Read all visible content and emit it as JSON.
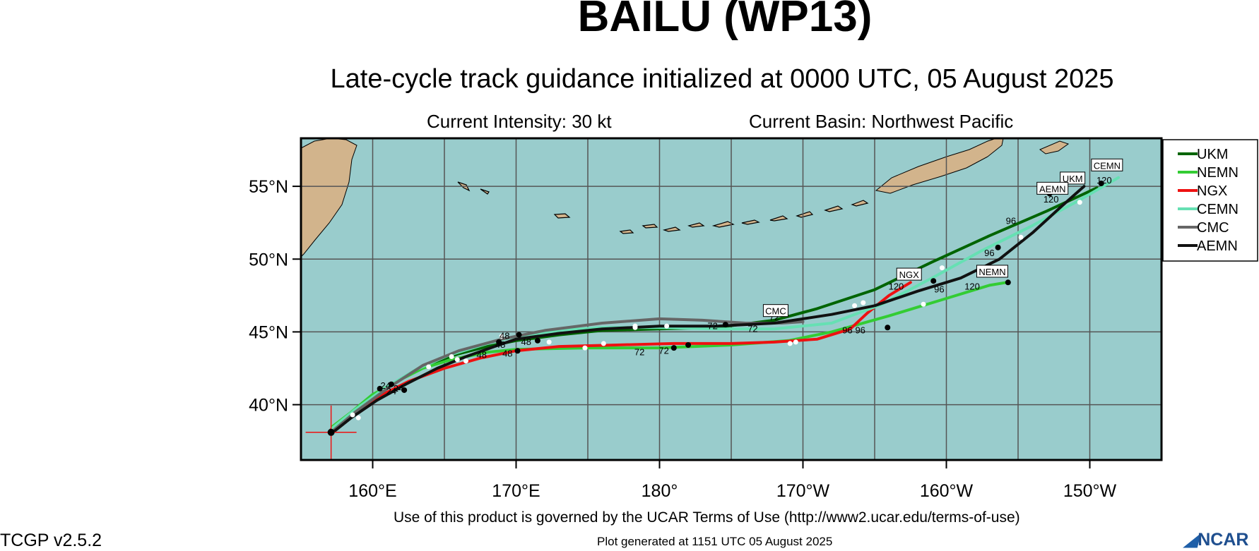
{
  "header": {
    "title": "BAILU (WP13)",
    "subtitle": "Late-cycle track guidance initialized at 0000 UTC, 05 August 2025",
    "intensity": "Current Intensity: 30 kt",
    "basin": "Current Basin: Northwest Pacific"
  },
  "footer": {
    "terms": "Use of this product is governed by the UCAR Terms of Use (http://www2.ucar.edu/terms-of-use)",
    "version": "TCGP v2.5.2",
    "generated": "Plot generated at 1151 UTC   05 August 2025",
    "logo": "NCAR"
  },
  "colors": {
    "ocean": "#99cccc",
    "land": "#d2b48c",
    "grid": "#555555"
  },
  "map": {
    "lon_range_east": [
      155,
      215
    ],
    "lat_range": [
      36.2,
      58.3
    ],
    "lat_ticks": [
      {
        "lat": 55,
        "label": "55°N"
      },
      {
        "lat": 50,
        "label": "50°N"
      },
      {
        "lat": 45,
        "label": "45°N"
      },
      {
        "lat": 40,
        "label": "40°N"
      }
    ],
    "lon_ticks": [
      {
        "lon": 160,
        "label": "160°E"
      },
      {
        "lon": 170,
        "label": "170°E"
      },
      {
        "lon": 180,
        "label": "180°"
      },
      {
        "lon": 190,
        "label": "170°W"
      },
      {
        "lon": 200,
        "label": "160°W"
      },
      {
        "lon": 210,
        "label": "150°W"
      }
    ],
    "initial_position": {
      "lon": 157.1,
      "lat": 38.1
    },
    "tracks": [
      {
        "name": "UKM",
        "color": "#006400",
        "points": [
          [
            157.1,
            38.2
          ],
          [
            158.6,
            39.3
          ],
          [
            160.5,
            40.8
          ],
          [
            162,
            41.8
          ],
          [
            164,
            42.8
          ],
          [
            166,
            43.5
          ],
          [
            168,
            44
          ],
          [
            170,
            44.4
          ],
          [
            173,
            44.8
          ],
          [
            176,
            45.1
          ],
          [
            180,
            45.2
          ],
          [
            184,
            45.3
          ],
          [
            188,
            45.8
          ],
          [
            191,
            46.6
          ],
          [
            195,
            47.9
          ],
          [
            199,
            49.8
          ],
          [
            203,
            51.6
          ],
          [
            207,
            53.3
          ],
          [
            210.5,
            54.9
          ]
        ],
        "hour_labels": [],
        "end_label": {
          "text": "UKM",
          "lon": 208.8,
          "lat": 55.3
        }
      },
      {
        "name": "NEMN",
        "color": "#33cc33",
        "points": [
          [
            157.2,
            38.5
          ],
          [
            158.4,
            39.4
          ],
          [
            160,
            40.7
          ],
          [
            161.5,
            41.5
          ],
          [
            163.5,
            42.5
          ],
          [
            165.5,
            43.1
          ],
          [
            168,
            43.6
          ],
          [
            170,
            43.8
          ],
          [
            175,
            43.9
          ],
          [
            180,
            43.9
          ],
          [
            185,
            44.1
          ],
          [
            189,
            44.4
          ],
          [
            192,
            45.0
          ],
          [
            196,
            46.1
          ],
          [
            200,
            47.3
          ],
          [
            203,
            48.2
          ],
          [
            204.2,
            48.4
          ]
        ],
        "hour_labels": [],
        "end_label": {
          "text": "NEMN",
          "lon": 203.2,
          "lat": 48.9
        }
      },
      {
        "name": "NGX",
        "color": "#ee1111",
        "points": [
          [
            157.1,
            38.3
          ],
          [
            158.7,
            39.5
          ],
          [
            160.5,
            40.6
          ],
          [
            162.5,
            41.6
          ],
          [
            165,
            42.5
          ],
          [
            167.5,
            43.2
          ],
          [
            170,
            43.7
          ],
          [
            173,
            44.0
          ],
          [
            177,
            44.1
          ],
          [
            181,
            44.2
          ],
          [
            185,
            44.2
          ],
          [
            188,
            44.3
          ],
          [
            191,
            44.5
          ],
          [
            193.3,
            45.2
          ],
          [
            194.5,
            46.3
          ],
          [
            196,
            47.5
          ],
          [
            197.5,
            48.4
          ]
        ],
        "hour_labels": [],
        "end_label": {
          "text": "NGX",
          "lon": 197.4,
          "lat": 48.7
        }
      },
      {
        "name": "CEMN",
        "color": "#66e0b3",
        "points": [
          [
            157.2,
            38.4
          ],
          [
            158.7,
            39.6
          ],
          [
            160.8,
            41.1
          ],
          [
            163,
            42.4
          ],
          [
            165.3,
            43.4
          ],
          [
            168,
            44.2
          ],
          [
            170,
            44.7
          ],
          [
            173,
            45.1
          ],
          [
            176,
            45.3
          ],
          [
            180,
            45.3
          ],
          [
            184,
            45.2
          ],
          [
            188,
            45.2
          ],
          [
            192,
            45.6
          ],
          [
            195.5,
            46.9
          ],
          [
            199,
            48.7
          ],
          [
            202.5,
            50.6
          ],
          [
            206,
            52.3
          ],
          [
            209,
            53.9
          ],
          [
            212,
            55.6
          ]
        ],
        "hour_labels": [],
        "end_label": {
          "text": "CEMN",
          "lon": 211.2,
          "lat": 56.2
        }
      },
      {
        "name": "CMC",
        "color": "#666666",
        "points": [
          [
            157.1,
            38.1
          ],
          [
            158.8,
            39.5
          ],
          [
            161,
            41.1
          ],
          [
            163.5,
            42.7
          ],
          [
            166,
            43.7
          ],
          [
            169,
            44.5
          ],
          [
            172,
            45.1
          ],
          [
            176,
            45.6
          ],
          [
            180,
            45.9
          ],
          [
            183,
            45.8
          ],
          [
            186,
            45.6
          ],
          [
            188.5,
            45.6
          ],
          [
            190,
            45.7
          ]
        ],
        "hour_labels": [],
        "end_label": {
          "text": "CMC",
          "lon": 188.1,
          "lat": 46.2
        }
      },
      {
        "name": "AEMN",
        "color": "#111111",
        "points": [
          [
            157.1,
            38.0
          ],
          [
            158.5,
            39.1
          ],
          [
            160.3,
            40.3
          ],
          [
            162.3,
            41.4
          ],
          [
            164.5,
            42.5
          ],
          [
            166.5,
            43.3
          ],
          [
            168.5,
            44.0
          ],
          [
            170,
            44.5
          ],
          [
            173,
            44.9
          ],
          [
            176,
            45.2
          ],
          [
            180,
            45.4
          ],
          [
            184,
            45.4
          ],
          [
            188,
            45.6
          ],
          [
            192,
            46.2
          ],
          [
            195,
            46.8
          ],
          [
            198,
            47.8
          ],
          [
            201,
            48.7
          ],
          [
            203.7,
            50.0
          ],
          [
            206,
            51.8
          ],
          [
            208,
            53.6
          ],
          [
            209.6,
            55.0
          ]
        ],
        "hour_labels": [],
        "end_label": {
          "text": "AEMN",
          "lon": 207.4,
          "lat": 54.6
        }
      }
    ],
    "forecast_hours": [
      {
        "text": "24",
        "lon": 160.9,
        "lat": 41.1
      },
      {
        "text": "24",
        "lon": 161.3,
        "lat": 40.7
      },
      {
        "text": "24",
        "lon": 161.8,
        "lat": 40.9
      },
      {
        "text": "48",
        "lon": 168.9,
        "lat": 43.9
      },
      {
        "text": "48",
        "lon": 169.2,
        "lat": 44.5
      },
      {
        "text": "48",
        "lon": 170.7,
        "lat": 44.1
      },
      {
        "text": "48",
        "lon": 167.6,
        "lat": 43.2
      },
      {
        "text": "48",
        "lon": 169.4,
        "lat": 43.3
      },
      {
        "text": "72",
        "lon": 178.6,
        "lat": 43.4
      },
      {
        "text": "72",
        "lon": 180.3,
        "lat": 43.5
      },
      {
        "text": "72",
        "lon": 183.7,
        "lat": 45.2
      },
      {
        "text": "72",
        "lon": 186.5,
        "lat": 45.0
      },
      {
        "text": "72",
        "lon": 188.0,
        "lat": 45.8
      },
      {
        "text": "96",
        "lon": 194.0,
        "lat": 44.9
      },
      {
        "text": "96",
        "lon": 193.1,
        "lat": 44.9
      },
      {
        "text": "96",
        "lon": 199.5,
        "lat": 47.7
      },
      {
        "text": "96",
        "lon": 203.0,
        "lat": 50.2
      },
      {
        "text": "96",
        "lon": 204.5,
        "lat": 52.4
      },
      {
        "text": "120",
        "lon": 196.5,
        "lat": 47.9
      },
      {
        "text": "120",
        "lon": 201.8,
        "lat": 47.9
      },
      {
        "text": "120",
        "lon": 207.3,
        "lat": 53.9
      },
      {
        "text": "120",
        "lon": 211.0,
        "lat": 55.2
      }
    ],
    "white_markers": [
      [
        158.6,
        39.3
      ],
      [
        159.0,
        39.1
      ],
      [
        163.9,
        42.6
      ],
      [
        165.5,
        43.3
      ],
      [
        165.9,
        43.1
      ],
      [
        166.5,
        43.0
      ],
      [
        169.0,
        44.7
      ],
      [
        172.3,
        44.3
      ],
      [
        174.8,
        43.9
      ],
      [
        176.1,
        44.2
      ],
      [
        178.3,
        45.4
      ],
      [
        178.3,
        45.3
      ],
      [
        180.5,
        45.4
      ],
      [
        189.1,
        44.2
      ],
      [
        189.5,
        44.3
      ],
      [
        193.6,
        46.8
      ],
      [
        194.2,
        47.0
      ],
      [
        198.4,
        46.9
      ],
      [
        199.7,
        49.4
      ],
      [
        205.2,
        51.5
      ],
      [
        209.3,
        53.9
      ]
    ],
    "black_markers": [
      [
        160.5,
        41.1
      ],
      [
        161.3,
        41.4
      ],
      [
        162.2,
        41.0
      ],
      [
        168.8,
        44.3
      ],
      [
        170.2,
        44.8
      ],
      [
        171.5,
        44.4
      ],
      [
        170.1,
        43.7
      ],
      [
        181.0,
        43.9
      ],
      [
        182.0,
        44.1
      ],
      [
        184.6,
        45.5
      ],
      [
        195.9,
        45.3
      ],
      [
        203.6,
        50.8
      ],
      [
        204.3,
        48.4
      ],
      [
        199.1,
        48.5
      ],
      [
        207.2,
        54.5
      ],
      [
        210.8,
        55.2
      ]
    ],
    "legend": [
      {
        "name": "UKM",
        "color": "#006400"
      },
      {
        "name": "NEMN",
        "color": "#33cc33"
      },
      {
        "name": "NGX",
        "color": "#ee1111"
      },
      {
        "name": "CEMN",
        "color": "#66e0b3"
      },
      {
        "name": "CMC",
        "color": "#666666"
      },
      {
        "name": "AEMN",
        "color": "#111111"
      }
    ]
  }
}
